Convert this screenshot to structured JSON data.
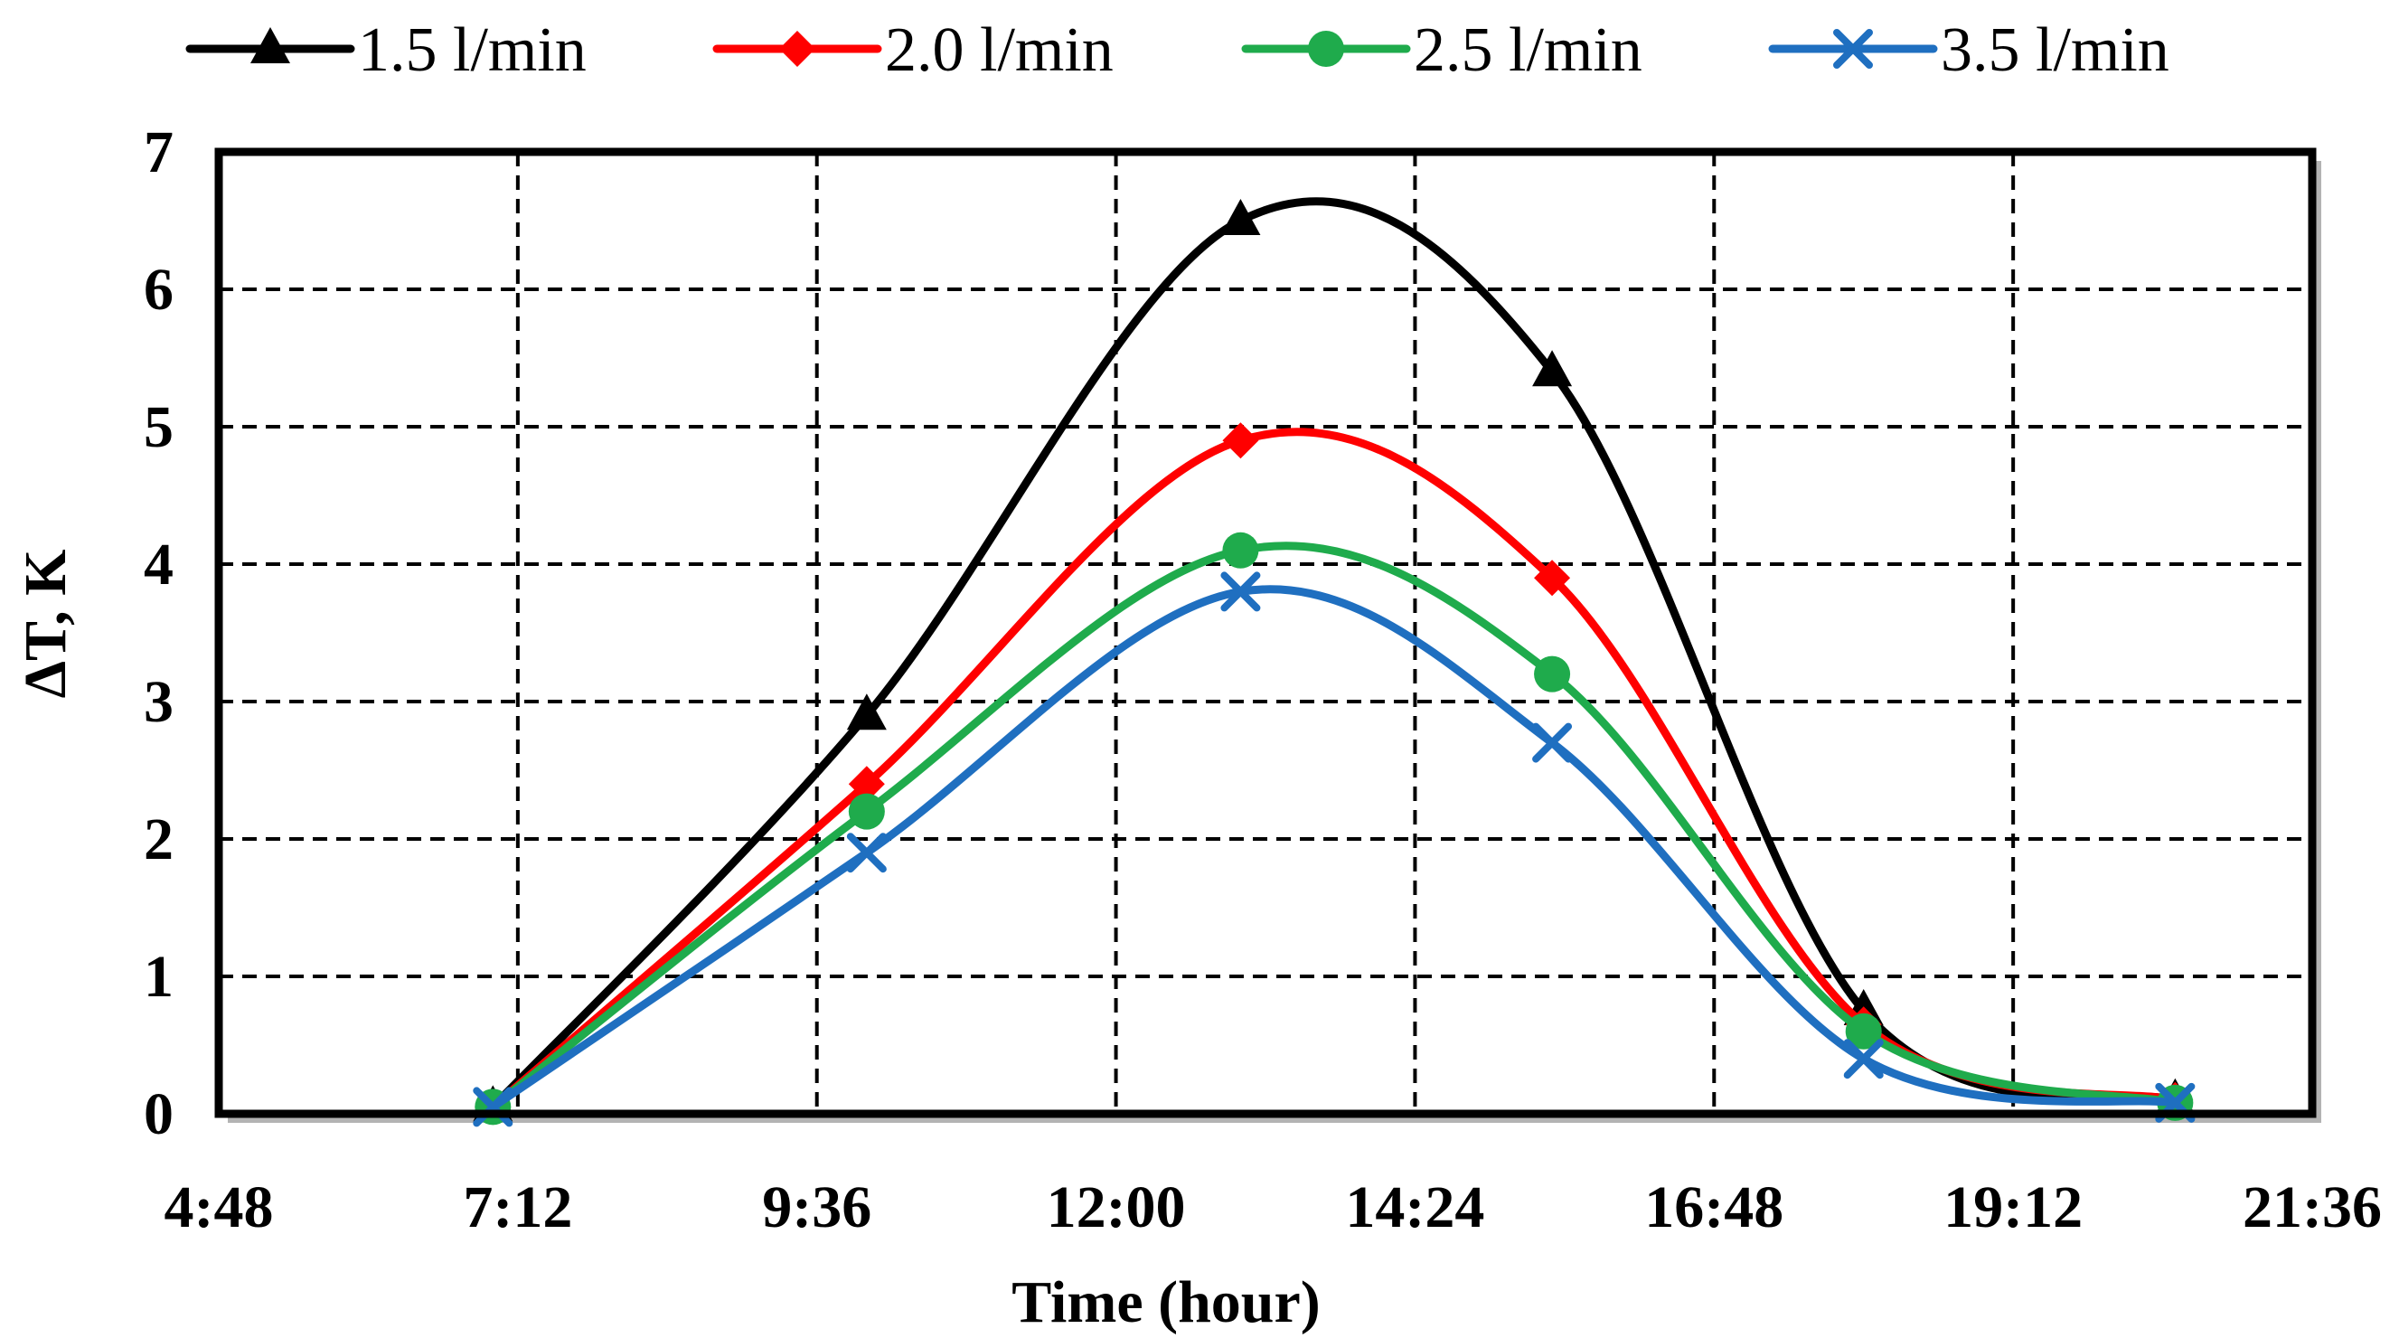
{
  "chart_data": {
    "type": "line",
    "title": "",
    "xlabel": "Time (hour)",
    "ylabel": "ΔT, K",
    "x_ticks": [
      "4:48",
      "7:12",
      "9:36",
      "12:00",
      "14:24",
      "16:48",
      "19:12",
      "21:36"
    ],
    "x_tick_hours": [
      4.8,
      7.2,
      9.6,
      12.0,
      14.4,
      16.8,
      19.2,
      21.6
    ],
    "xlim_hours": [
      4.8,
      21.6
    ],
    "y_ticks": [
      0,
      1,
      2,
      3,
      4,
      5,
      6,
      7
    ],
    "ylim": [
      0,
      7
    ],
    "grid": true,
    "legend_position": "top",
    "x_hours": [
      7.0,
      10.0,
      13.0,
      15.5,
      18.0,
      20.5
    ],
    "series": [
      {
        "name": "1.5 l/min",
        "color": "#000000",
        "marker": "triangle",
        "values": [
          0.05,
          2.9,
          6.5,
          5.4,
          0.75,
          0.1
        ]
      },
      {
        "name": "2.0 l/min",
        "color": "#ff0000",
        "marker": "diamond",
        "values": [
          0.05,
          2.4,
          4.9,
          3.9,
          0.65,
          0.1
        ]
      },
      {
        "name": "2.5 l/min",
        "color": "#1fab4c",
        "marker": "circle",
        "values": [
          0.05,
          2.2,
          4.1,
          3.2,
          0.6,
          0.08
        ]
      },
      {
        "name": "3.5 l/min",
        "color": "#1f6fc0",
        "marker": "x",
        "values": [
          0.05,
          1.9,
          3.8,
          2.7,
          0.4,
          0.08
        ]
      }
    ]
  }
}
